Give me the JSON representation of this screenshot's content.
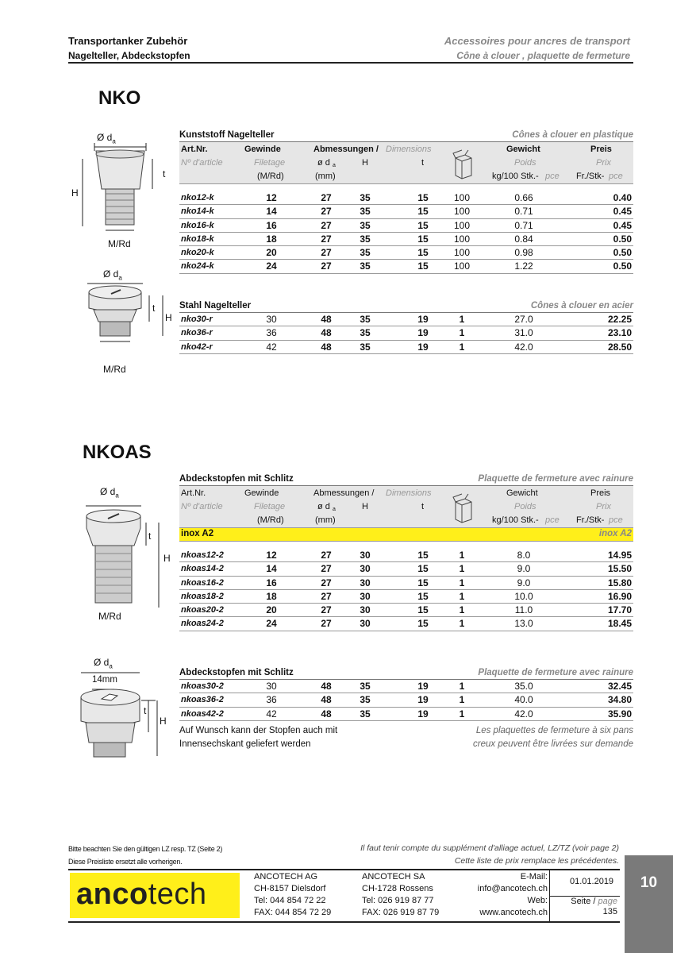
{
  "header": {
    "left_title": "Transportanker Zubehör",
    "left_subtitle": "Nagelteller, Abdeckstopfen",
    "right_title": "Accessoires pour ancres de transport",
    "right_subtitle": "Cône à clouer , plaquette de fermeture"
  },
  "columns": {
    "art": "Art.Nr.",
    "art_fr": "Nº d'article",
    "gewinde": "Gewinde",
    "gewinde_fr": "Filetage",
    "gewinde_unit": "(M/Rd)",
    "abm": "Abmessungen / ",
    "abm_fr": "Dimensions",
    "d": "ø d",
    "d_sub": "a",
    "h": "H",
    "t": "t",
    "unit_mm": "(mm)",
    "gewicht": "Gewicht",
    "gewicht_fr": "Poids",
    "gewicht_unit": "kg/100 Stk.-",
    "gewicht_unit_fr": "pce",
    "preis": "Preis",
    "preis_fr": "Prix",
    "preis_unit": "Fr./Stk-",
    "preis_unit_fr": "pce",
    "package_icon": "box-icon"
  },
  "nko": {
    "title": "NKO",
    "drawing_labels": {
      "d": "Ø d",
      "d_sub": "a",
      "h": "H",
      "t": "t",
      "thread": "M/Rd"
    },
    "plastic": {
      "title": "Kunststoff Nagelteller",
      "title_fr": "Cônes à clouer en plastique",
      "rows": [
        [
          "nko12-k",
          "12",
          "27",
          "35",
          "15",
          "100",
          "0.66",
          "0.40"
        ],
        [
          "nko14-k",
          "14",
          "27",
          "35",
          "15",
          "100",
          "0.71",
          "0.45"
        ],
        [
          "nko16-k",
          "16",
          "27",
          "35",
          "15",
          "100",
          "0.71",
          "0.45"
        ],
        [
          "nko18-k",
          "18",
          "27",
          "35",
          "15",
          "100",
          "0.84",
          "0.50"
        ],
        [
          "nko20-k",
          "20",
          "27",
          "35",
          "15",
          "100",
          "0.98",
          "0.50"
        ],
        [
          "nko24-k",
          "24",
          "27",
          "35",
          "15",
          "100",
          "1.22",
          "0.50"
        ]
      ]
    },
    "steel": {
      "title": "Stahl Nagelteller",
      "title_fr": "Cônes à clouer en acier",
      "rows": [
        [
          "nko30-r",
          "30",
          "48",
          "35",
          "19",
          "1",
          "27.0",
          "22.25"
        ],
        [
          "nko36-r",
          "36",
          "48",
          "35",
          "19",
          "1",
          "31.0",
          "23.10"
        ],
        [
          "nko42-r",
          "42",
          "48",
          "35",
          "19",
          "1",
          "42.0",
          "28.50"
        ]
      ]
    }
  },
  "nkoas": {
    "title": "NKOAS",
    "drawing_labels": {
      "d": "Ø d",
      "d_sub": "a",
      "h": "H",
      "t": "t",
      "thread": "M/Rd",
      "slot": "14mm"
    },
    "small": {
      "title": "Abdeckstopfen mit Schlitz",
      "title_fr": "Plaquette de fermeture avec rainure",
      "material": "inox A2",
      "material_fr": "inox A2",
      "rows": [
        [
          "nkoas12-2",
          "12",
          "27",
          "30",
          "15",
          "1",
          "8.0",
          "14.95"
        ],
        [
          "nkoas14-2",
          "14",
          "27",
          "30",
          "15",
          "1",
          "9.0",
          "15.50"
        ],
        [
          "nkoas16-2",
          "16",
          "27",
          "30",
          "15",
          "1",
          "9.0",
          "15.80"
        ],
        [
          "nkoas18-2",
          "18",
          "27",
          "30",
          "15",
          "1",
          "10.0",
          "16.90"
        ],
        [
          "nkoas20-2",
          "20",
          "27",
          "30",
          "15",
          "1",
          "11.0",
          "17.70"
        ],
        [
          "nkoas24-2",
          "24",
          "27",
          "30",
          "15",
          "1",
          "13.0",
          "18.45"
        ]
      ]
    },
    "large": {
      "title": "Abdeckstopfen mit Schlitz",
      "title_fr": "Plaquette de fermeture avec rainure",
      "rows": [
        [
          "nkoas30-2",
          "30",
          "48",
          "35",
          "19",
          "1",
          "35.0",
          "32.45"
        ],
        [
          "nkoas36-2",
          "36",
          "48",
          "35",
          "19",
          "1",
          "40.0",
          "34.80"
        ],
        [
          "nkoas42-2",
          "42",
          "48",
          "35",
          "19",
          "1",
          "42.0",
          "35.90"
        ]
      ]
    },
    "note_de_1": "Auf Wunsch kann der Stopfen auch mit",
    "note_de_2": "Innensechskant geliefert werden",
    "note_fr_1": "Les plaquettes de fermeture à six pans",
    "note_fr_2": "creux peuvent être livrées sur demande"
  },
  "footer": {
    "note_de_1": "Bitte beachten Sie den gültigen LZ resp. TZ (Seite 2)",
    "note_de_2": "Diese Preisliste ersetzt alle vorherigen.",
    "note_fr_1": "Il faut tenir compte du supplément d'alliage actuel, LZ/TZ (voir page 2)",
    "note_fr_2": "Cette liste de prix remplace les précédentes.",
    "logo_bold": "anco",
    "logo_light": "tech",
    "logo_color": "#ffef1a",
    "ag": [
      "ANCOTECH AG",
      "CH-8157  Dielsdorf",
      "Tel:   044 854 72 22",
      "FAX: 044 854 72 29"
    ],
    "sa": [
      "ANCOTECH SA",
      "CH-1728 Rossens",
      "Tel:   026 919 87 77",
      "FAX: 026 919 87 79"
    ],
    "email_label": "E-Mail:",
    "email": "info@ancotech.ch",
    "web_label": "Web:",
    "web": "www.ancotech.ch",
    "date": "01.01.2019",
    "page_label": "Seite / ",
    "page_label_fr": "page",
    "page": "135",
    "section_number": "10"
  }
}
